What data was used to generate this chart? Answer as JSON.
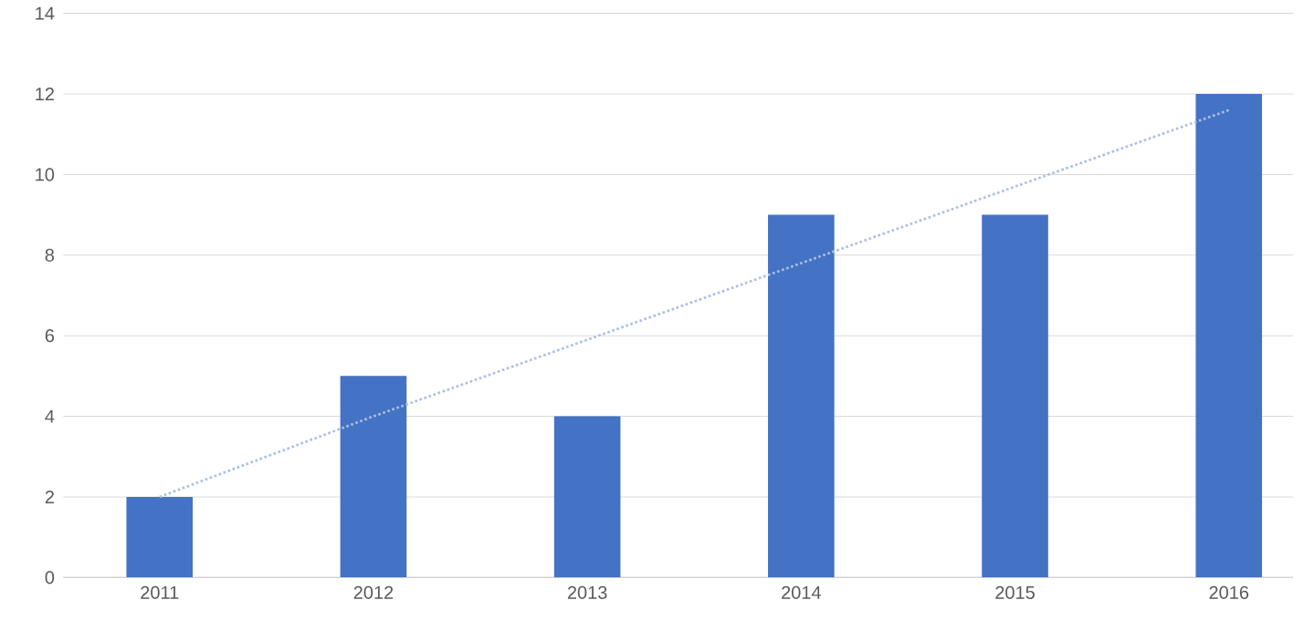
{
  "chart_data": {
    "type": "bar",
    "categories": [
      "2011",
      "2012",
      "2013",
      "2014",
      "2015",
      "2016"
    ],
    "series": [
      {
        "type": "bar",
        "color": "#4472c4",
        "values": [
          2,
          5,
          4,
          9,
          9,
          12
        ]
      },
      {
        "type": "line",
        "color": "#a9bfe6",
        "line_style": "dotted",
        "marker": "none",
        "values": [
          2.0,
          4.0,
          5.9,
          7.8,
          9.7,
          11.6
        ]
      }
    ],
    "ylim": [
      0,
      14
    ],
    "yticks": [
      0,
      2,
      4,
      6,
      8,
      10,
      12,
      14
    ],
    "grid": "y"
  }
}
